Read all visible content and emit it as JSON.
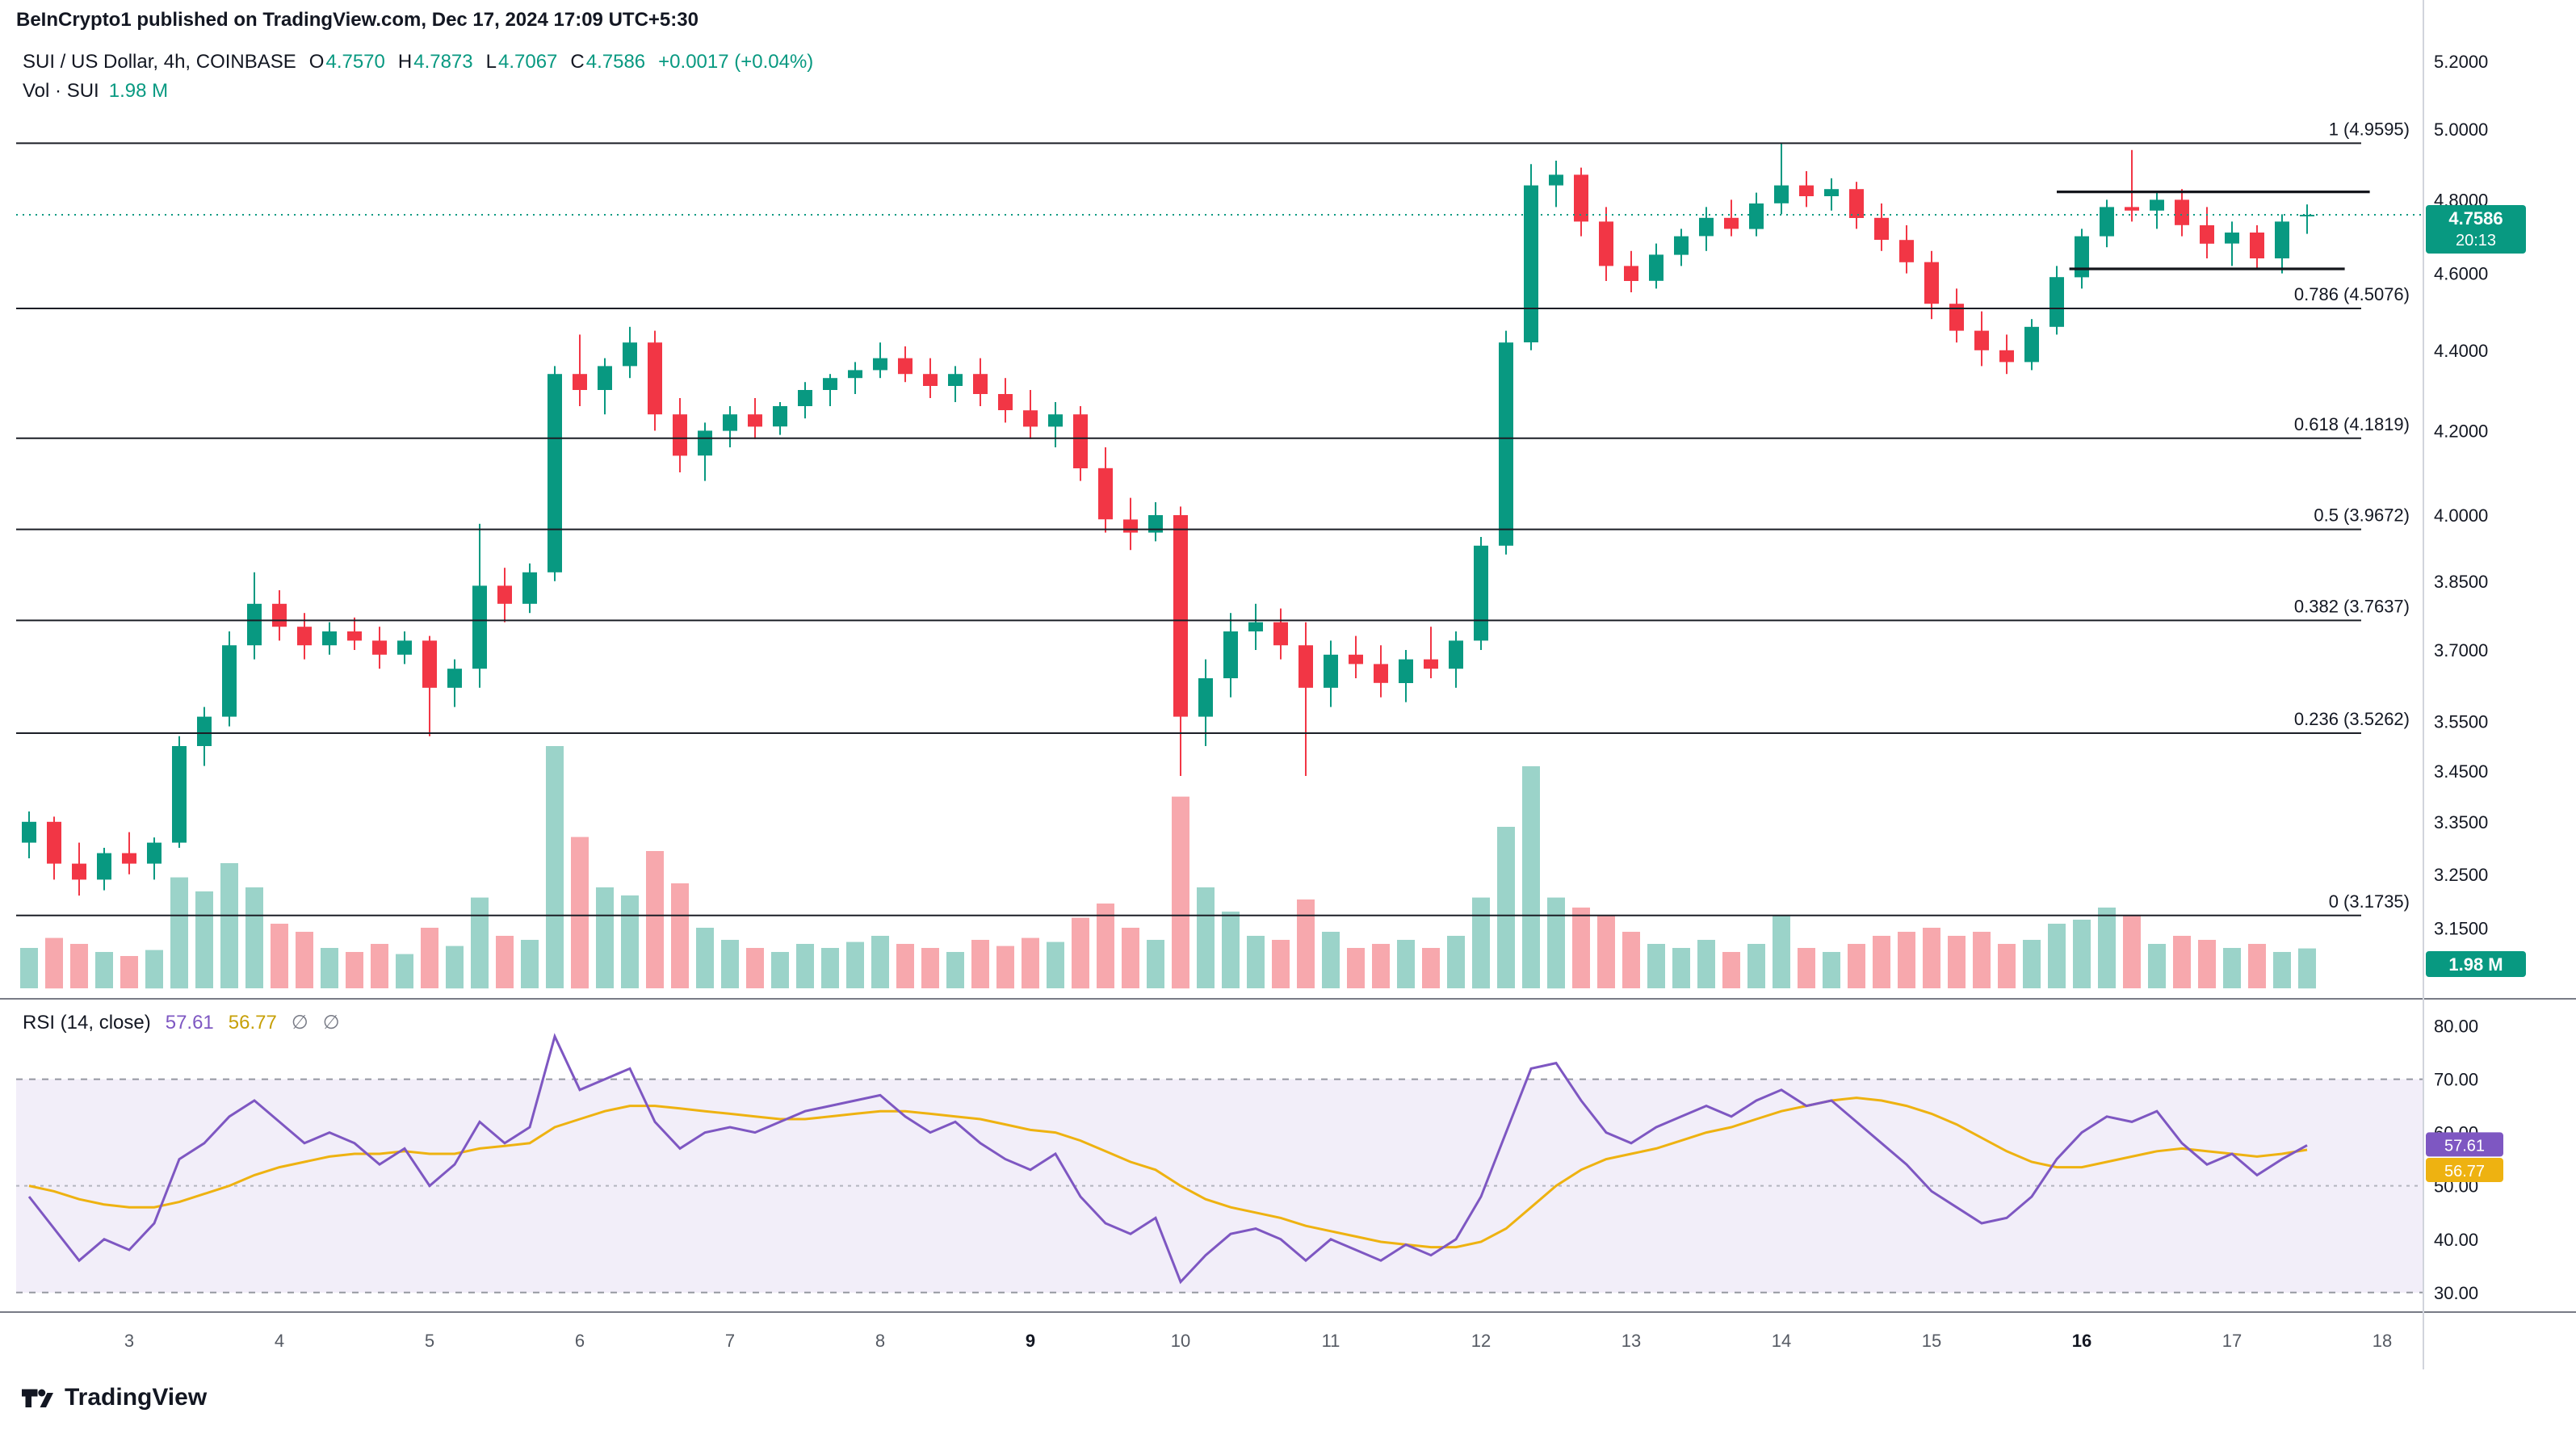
{
  "header": {
    "published_line": "BeInCrypto1 published on TradingView.com, Dec 17, 2024 17:09 UTC+5:30"
  },
  "legend": {
    "symbol_title": "SUI / US Dollar, 4h, COINBASE",
    "o_label": "O",
    "o": "4.7570",
    "h_label": "H",
    "h": "4.7873",
    "l_label": "L",
    "l": "4.7067",
    "c_label": "C",
    "c": "4.7586",
    "change": "+0.0017 (+0.04%)",
    "vol_label": "Vol · SUI",
    "vol_value": "1.98 M"
  },
  "rsi_legend": {
    "title": "RSI (14, close)",
    "rsi_value": "57.61",
    "ma_value": "56.77",
    "icon1": "∅",
    "icon2": "∅"
  },
  "footer": {
    "brand": "TradingView"
  },
  "chart_data": {
    "type": "candlestick",
    "title": "SUI / US Dollar, 4h, COINBASE",
    "interval": "4h",
    "exchange": "COINBASE",
    "price_scale_type": "log",
    "candles_per_day": 6,
    "first_day_tick_candle_index": 4,
    "time_axis": {
      "day_labels": [
        "3",
        "4",
        "5",
        "6",
        "7",
        "8",
        "9",
        "10",
        "11",
        "12",
        "13",
        "14",
        "15",
        "16",
        "17",
        "18"
      ],
      "bold_labels": [
        "9",
        "16"
      ]
    },
    "price_axis": {
      "ticks": [
        {
          "label": "5.2000",
          "v": 5.2
        },
        {
          "label": "5.0000",
          "v": 5.0
        },
        {
          "label": "4.8000",
          "v": 4.8
        },
        {
          "label": "4.6000",
          "v": 4.6
        },
        {
          "label": "4.4000",
          "v": 4.4
        },
        {
          "label": "4.2000",
          "v": 4.2
        },
        {
          "label": "4.0000",
          "v": 4.0
        },
        {
          "label": "3.8500",
          "v": 3.85
        },
        {
          "label": "3.7000",
          "v": 3.7
        },
        {
          "label": "3.5500",
          "v": 3.55
        },
        {
          "label": "3.4500",
          "v": 3.45
        },
        {
          "label": "3.3500",
          "v": 3.35
        },
        {
          "label": "3.2500",
          "v": 3.25
        },
        {
          "label": "3.1500",
          "v": 3.15
        }
      ]
    },
    "fib_levels": [
      {
        "label": "1 (4.9595)",
        "v": 4.9595
      },
      {
        "label": "0.786 (4.5076)",
        "v": 4.5076
      },
      {
        "label": "0.618 (4.1819)",
        "v": 4.1819
      },
      {
        "label": "0.5 (3.9672)",
        "v": 3.9672
      },
      {
        "label": "0.382 (3.7637)",
        "v": 3.7637
      },
      {
        "label": "0.236 (3.5262)",
        "v": 3.5262
      },
      {
        "label": "0 (3.1735)",
        "v": 3.1735
      }
    ],
    "channel_lines": [
      {
        "v": 4.822,
        "from_index": 81.0,
        "to_index": 93.5
      },
      {
        "v": 4.612,
        "from_index": 81.5,
        "to_index": 92.5
      }
    ],
    "last_price": {
      "value": 4.7586,
      "label": "4.7586",
      "countdown": "20:13"
    },
    "volume_badge": "1.98 M",
    "ohlc": {
      "open": 4.757,
      "high": 4.7873,
      "low": 4.7067,
      "close": 4.7586,
      "change": "+0.0017 (+0.04%)"
    },
    "candles": [
      [
        3.31,
        3.37,
        3.28,
        3.35,
        2.0
      ],
      [
        3.35,
        3.36,
        3.24,
        3.27,
        2.5
      ],
      [
        3.27,
        3.31,
        3.21,
        3.24,
        2.2
      ],
      [
        3.24,
        3.3,
        3.22,
        3.29,
        1.8
      ],
      [
        3.29,
        3.33,
        3.25,
        3.27,
        1.6
      ],
      [
        3.27,
        3.32,
        3.24,
        3.31,
        1.9
      ],
      [
        3.31,
        3.52,
        3.3,
        3.5,
        5.5
      ],
      [
        3.5,
        3.58,
        3.46,
        3.56,
        4.8
      ],
      [
        3.56,
        3.74,
        3.54,
        3.71,
        6.2
      ],
      [
        3.71,
        3.87,
        3.68,
        3.8,
        5.0
      ],
      [
        3.8,
        3.83,
        3.72,
        3.75,
        3.2
      ],
      [
        3.75,
        3.78,
        3.68,
        3.71,
        2.8
      ],
      [
        3.71,
        3.76,
        3.69,
        3.74,
        2.0
      ],
      [
        3.74,
        3.77,
        3.7,
        3.72,
        1.8
      ],
      [
        3.72,
        3.75,
        3.66,
        3.69,
        2.2
      ],
      [
        3.69,
        3.74,
        3.67,
        3.72,
        1.7
      ],
      [
        3.72,
        3.73,
        3.52,
        3.62,
        3.0
      ],
      [
        3.62,
        3.68,
        3.58,
        3.66,
        2.1
      ],
      [
        3.66,
        3.98,
        3.62,
        3.84,
        4.5
      ],
      [
        3.84,
        3.88,
        3.76,
        3.8,
        2.6
      ],
      [
        3.8,
        3.89,
        3.78,
        3.87,
        2.4
      ],
      [
        3.87,
        4.36,
        3.85,
        4.34,
        12.0
      ],
      [
        4.34,
        4.44,
        4.26,
        4.3,
        7.5
      ],
      [
        4.3,
        4.38,
        4.24,
        4.36,
        5.0
      ],
      [
        4.36,
        4.46,
        4.33,
        4.42,
        4.6
      ],
      [
        4.42,
        4.45,
        4.2,
        4.24,
        6.8
      ],
      [
        4.24,
        4.28,
        4.1,
        4.14,
        5.2
      ],
      [
        4.14,
        4.22,
        4.08,
        4.2,
        3.0
      ],
      [
        4.2,
        4.26,
        4.16,
        4.24,
        2.4
      ],
      [
        4.24,
        4.28,
        4.18,
        4.21,
        2.0
      ],
      [
        4.21,
        4.27,
        4.19,
        4.26,
        1.8
      ],
      [
        4.26,
        4.32,
        4.23,
        4.3,
        2.2
      ],
      [
        4.3,
        4.34,
        4.26,
        4.33,
        2.0
      ],
      [
        4.33,
        4.37,
        4.29,
        4.35,
        2.3
      ],
      [
        4.35,
        4.42,
        4.33,
        4.38,
        2.6
      ],
      [
        4.38,
        4.41,
        4.32,
        4.34,
        2.2
      ],
      [
        4.34,
        4.38,
        4.28,
        4.31,
        2.0
      ],
      [
        4.31,
        4.36,
        4.27,
        4.34,
        1.8
      ],
      [
        4.34,
        4.38,
        4.26,
        4.29,
        2.4
      ],
      [
        4.29,
        4.33,
        4.22,
        4.25,
        2.1
      ],
      [
        4.25,
        4.3,
        4.18,
        4.21,
        2.5
      ],
      [
        4.21,
        4.27,
        4.16,
        4.24,
        2.3
      ],
      [
        4.24,
        4.26,
        4.08,
        4.11,
        3.5
      ],
      [
        4.11,
        4.16,
        3.96,
        3.99,
        4.2
      ],
      [
        3.99,
        4.04,
        3.92,
        3.96,
        3.0
      ],
      [
        3.96,
        4.03,
        3.94,
        4.0,
        2.4
      ],
      [
        4.0,
        4.02,
        3.44,
        3.56,
        9.5
      ],
      [
        3.56,
        3.68,
        3.5,
        3.64,
        5.0
      ],
      [
        3.64,
        3.78,
        3.6,
        3.74,
        3.8
      ],
      [
        3.74,
        3.8,
        3.7,
        3.76,
        2.6
      ],
      [
        3.76,
        3.79,
        3.68,
        3.71,
        2.4
      ],
      [
        3.71,
        3.76,
        3.44,
        3.62,
        4.4
      ],
      [
        3.62,
        3.72,
        3.58,
        3.69,
        2.8
      ],
      [
        3.69,
        3.73,
        3.64,
        3.67,
        2.0
      ],
      [
        3.67,
        3.71,
        3.6,
        3.63,
        2.2
      ],
      [
        3.63,
        3.7,
        3.59,
        3.68,
        2.4
      ],
      [
        3.68,
        3.75,
        3.64,
        3.66,
        2.0
      ],
      [
        3.66,
        3.74,
        3.62,
        3.72,
        2.6
      ],
      [
        3.72,
        3.95,
        3.7,
        3.93,
        4.5
      ],
      [
        3.93,
        4.45,
        3.91,
        4.42,
        8.0
      ],
      [
        4.42,
        4.9,
        4.4,
        4.84,
        11.0
      ],
      [
        4.84,
        4.91,
        4.78,
        4.87,
        4.5
      ],
      [
        4.87,
        4.89,
        4.7,
        4.74,
        4.0
      ],
      [
        4.74,
        4.78,
        4.58,
        4.62,
        3.6
      ],
      [
        4.62,
        4.66,
        4.55,
        4.58,
        2.8
      ],
      [
        4.58,
        4.68,
        4.56,
        4.65,
        2.2
      ],
      [
        4.65,
        4.72,
        4.62,
        4.7,
        2.0
      ],
      [
        4.7,
        4.78,
        4.66,
        4.75,
        2.4
      ],
      [
        4.75,
        4.8,
        4.7,
        4.72,
        1.8
      ],
      [
        4.72,
        4.82,
        4.7,
        4.79,
        2.2
      ],
      [
        4.79,
        4.96,
        4.76,
        4.84,
        3.6
      ],
      [
        4.84,
        4.88,
        4.78,
        4.81,
        2.0
      ],
      [
        4.81,
        4.86,
        4.77,
        4.83,
        1.8
      ],
      [
        4.83,
        4.85,
        4.72,
        4.75,
        2.2
      ],
      [
        4.75,
        4.79,
        4.66,
        4.69,
        2.6
      ],
      [
        4.69,
        4.73,
        4.6,
        4.63,
        2.8
      ],
      [
        4.63,
        4.66,
        4.48,
        4.52,
        3.0
      ],
      [
        4.52,
        4.56,
        4.42,
        4.45,
        2.6
      ],
      [
        4.45,
        4.5,
        4.36,
        4.4,
        2.8
      ],
      [
        4.4,
        4.44,
        4.34,
        4.37,
        2.2
      ],
      [
        4.37,
        4.48,
        4.35,
        4.46,
        2.4
      ],
      [
        4.46,
        4.62,
        4.44,
        4.59,
        3.2
      ],
      [
        4.59,
        4.72,
        4.56,
        4.7,
        3.4
      ],
      [
        4.7,
        4.8,
        4.67,
        4.78,
        4.0
      ],
      [
        4.78,
        4.94,
        4.74,
        4.77,
        3.6
      ],
      [
        4.77,
        4.82,
        4.72,
        4.8,
        2.2
      ],
      [
        4.8,
        4.83,
        4.7,
        4.73,
        2.6
      ],
      [
        4.73,
        4.78,
        4.64,
        4.68,
        2.4
      ],
      [
        4.68,
        4.74,
        4.62,
        4.71,
        2.0
      ],
      [
        4.71,
        4.73,
        4.61,
        4.64,
        2.2
      ],
      [
        4.64,
        4.76,
        4.6,
        4.74,
        1.8
      ],
      [
        4.757,
        4.7873,
        4.7067,
        4.7586,
        1.98
      ]
    ],
    "rsi": {
      "title": "RSI (14, close)",
      "upper_band": 70,
      "mid": 50,
      "lower_band": 30,
      "rsi_badge": "57.61",
      "ma_badge": "56.77",
      "ticks": [
        {
          "label": "80.00",
          "v": 80
        },
        {
          "label": "70.00",
          "v": 70
        },
        {
          "label": "60.00",
          "v": 60
        },
        {
          "label": "50.00",
          "v": 50
        },
        {
          "label": "40.00",
          "v": 40
        },
        {
          "label": "30.00",
          "v": 30
        }
      ],
      "values": [
        48,
        42,
        36,
        40,
        38,
        43,
        55,
        58,
        63,
        66,
        62,
        58,
        60,
        58,
        54,
        57,
        50,
        54,
        62,
        58,
        61,
        78,
        68,
        70,
        72,
        62,
        57,
        60,
        61,
        60,
        62,
        64,
        65,
        66,
        67,
        63,
        60,
        62,
        58,
        55,
        53,
        56,
        48,
        43,
        41,
        44,
        32,
        37,
        41,
        42,
        40,
        36,
        40,
        38,
        36,
        39,
        37,
        40,
        48,
        60,
        72,
        73,
        66,
        60,
        58,
        61,
        63,
        65,
        63,
        66,
        68,
        65,
        66,
        62,
        58,
        54,
        49,
        46,
        43,
        44,
        48,
        55,
        60,
        63,
        62,
        64,
        58,
        54,
        56,
        52,
        55,
        57.61
      ],
      "ma": [
        50,
        49,
        47.5,
        46.5,
        46,
        46,
        47,
        48.5,
        50,
        52,
        53.5,
        54.5,
        55.5,
        56,
        56,
        56.5,
        56,
        56,
        57,
        57.5,
        58,
        61,
        62.5,
        64,
        65,
        65,
        64.5,
        64,
        63.5,
        63,
        62.5,
        62.5,
        63,
        63.5,
        64,
        64,
        63.5,
        63,
        62.5,
        61.5,
        60.5,
        60,
        58.5,
        56.5,
        54.5,
        53,
        50,
        47.5,
        46,
        45,
        44,
        42.5,
        41.5,
        40.5,
        39.5,
        39,
        38.5,
        38.5,
        39.5,
        42,
        46,
        50,
        53,
        55,
        56,
        57,
        58.5,
        60,
        61,
        62.5,
        64,
        65,
        66,
        66.5,
        66,
        65,
        63.5,
        61.5,
        59,
        56.5,
        54.5,
        53.5,
        53.5,
        54.5,
        55.5,
        56.5,
        57,
        56.5,
        56,
        55.5,
        56,
        56.77
      ]
    },
    "colors": {
      "up": "#089981",
      "down": "#f23645",
      "vol_up": "#9bd3c9",
      "vol_down": "#f7a8ad",
      "rsi": "#7e57c2",
      "rsi_ma": "#eeb211",
      "fib": "#1b1e26",
      "badge": "#089981",
      "band": "#7e57c2"
    }
  }
}
